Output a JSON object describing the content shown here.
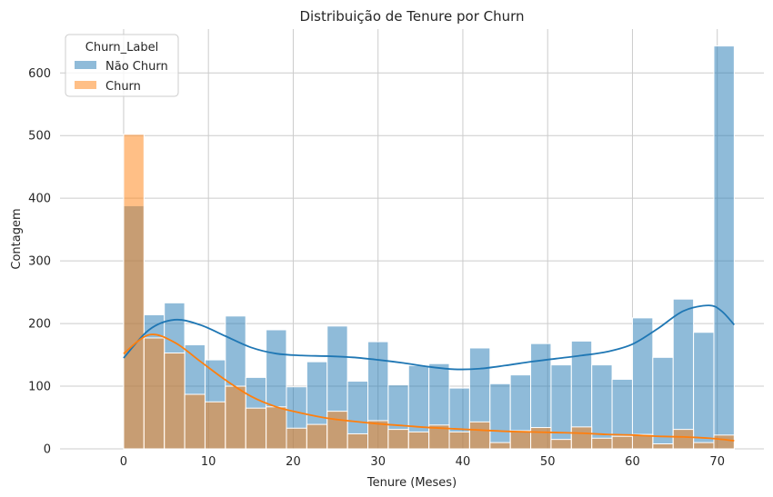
{
  "chart_data": {
    "type": "bar",
    "title": "Distribuição de Tenure por Churn",
    "xlabel": "Tenure (Meses)",
    "ylabel": "Contagem",
    "xlim": [
      -7.5,
      75.5
    ],
    "ylim": [
      0,
      670
    ],
    "xticks": [
      "0",
      "10",
      "20",
      "30",
      "40",
      "50",
      "60",
      "70"
    ],
    "yticks": [
      "0",
      "100",
      "200",
      "300",
      "400",
      "500",
      "600"
    ],
    "bin_width": 2.4,
    "bin_starts": [
      0,
      2.4,
      4.8,
      7.2,
      9.6,
      12.0,
      14.4,
      16.8,
      19.2,
      21.6,
      24.0,
      26.4,
      28.8,
      31.2,
      33.6,
      36.0,
      38.4,
      40.8,
      43.2,
      45.6,
      48.0,
      50.4,
      52.8,
      55.2,
      57.6,
      60.0,
      62.4,
      64.8,
      67.2,
      69.6
    ],
    "grid": true,
    "legend": {
      "title": "Churn_Label",
      "placement": "top-left"
    },
    "series": [
      {
        "name": "Não Churn",
        "color": "#1f77b4",
        "values": [
          388,
          214,
          233,
          166,
          142,
          212,
          114,
          190,
          99,
          139,
          196,
          108,
          171,
          102,
          133,
          136,
          97,
          161,
          104,
          118,
          168,
          134,
          172,
          134,
          111,
          209,
          146,
          239,
          186,
          643
        ],
        "kde_x": [
          0,
          3,
          6,
          9,
          12,
          15,
          18,
          21,
          24,
          27,
          30,
          33,
          36,
          39,
          42,
          45,
          48,
          51,
          54,
          57,
          60,
          63,
          66,
          69,
          70.5,
          72
        ],
        "kde_y": [
          145,
          190,
          206,
          198,
          180,
          162,
          152,
          149,
          148,
          146,
          142,
          137,
          131,
          127,
          128,
          133,
          139,
          144,
          149,
          155,
          167,
          192,
          220,
          229,
          220,
          198
        ]
      },
      {
        "name": "Churn",
        "color": "#ff7f0e",
        "values": [
          502,
          177,
          153,
          87,
          75,
          100,
          65,
          67,
          33,
          39,
          60,
          24,
          45,
          31,
          27,
          38,
          27,
          43,
          10,
          29,
          34,
          15,
          35,
          17,
          20,
          23,
          8,
          31,
          10,
          22
        ],
        "kde_x": [
          0,
          3,
          6,
          9,
          12,
          15,
          18,
          21,
          24,
          27,
          30,
          33,
          36,
          39,
          42,
          45,
          48,
          51,
          54,
          57,
          60,
          63,
          66,
          69,
          72
        ],
        "kde_y": [
          152,
          182,
          170,
          140,
          110,
          84,
          67,
          57,
          49,
          44,
          40,
          37,
          34,
          32,
          30,
          28,
          27,
          26,
          25,
          23,
          22,
          20,
          19,
          17,
          13
        ]
      }
    ]
  }
}
